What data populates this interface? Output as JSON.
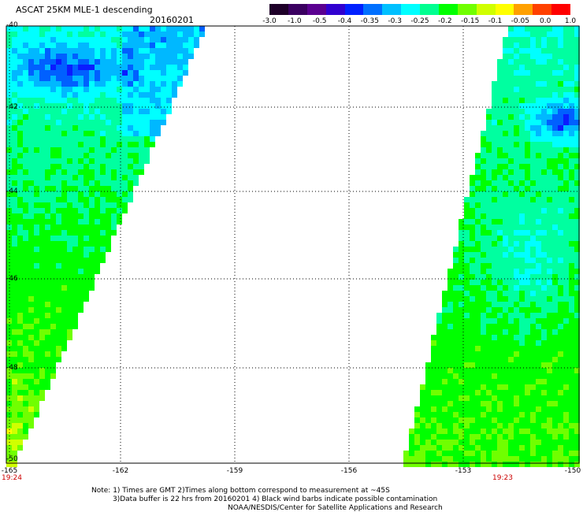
{
  "header": {
    "title": "ASCAT 25KM MLE-1 descending",
    "date": "20160201"
  },
  "colorbar": {
    "labels": [
      "-3.0",
      "-1.0",
      "-0.5",
      "-0.4",
      "-0.35",
      "-0.3",
      "-0.25",
      "-0.2",
      "-0.15",
      "-0.1",
      "-0.05",
      "0.0",
      "1.0"
    ],
    "colors": [
      "#1e0028",
      "#3a0060",
      "#5a0090",
      "#3000d0",
      "#0020ff",
      "#0070ff",
      "#00c0ff",
      "#00ffff",
      "#00ff90",
      "#00ff00",
      "#70ff00",
      "#d0ff00",
      "#ffff00",
      "#ffa000",
      "#ff4000",
      "#ff0000"
    ]
  },
  "axes": {
    "lat_labels": [
      "-40",
      "-42",
      "-44",
      "-46",
      "-48",
      "-50"
    ],
    "lon_labels": [
      "-165",
      "-162",
      "-159",
      "-156",
      "-153",
      "-150"
    ]
  },
  "swath_times": {
    "left": "19:24",
    "right": "19:23"
  },
  "notes": [
    "Note: 1) Times are GMT 2)Times along bottom correspond to measurement at ~45S",
    "3)Data buffer is 22 hrs from 20160201 4) Black wind barbs indicate possible contamination",
    "NOAA/NESDIS/Center for Satellite Applications and Research"
  ]
}
